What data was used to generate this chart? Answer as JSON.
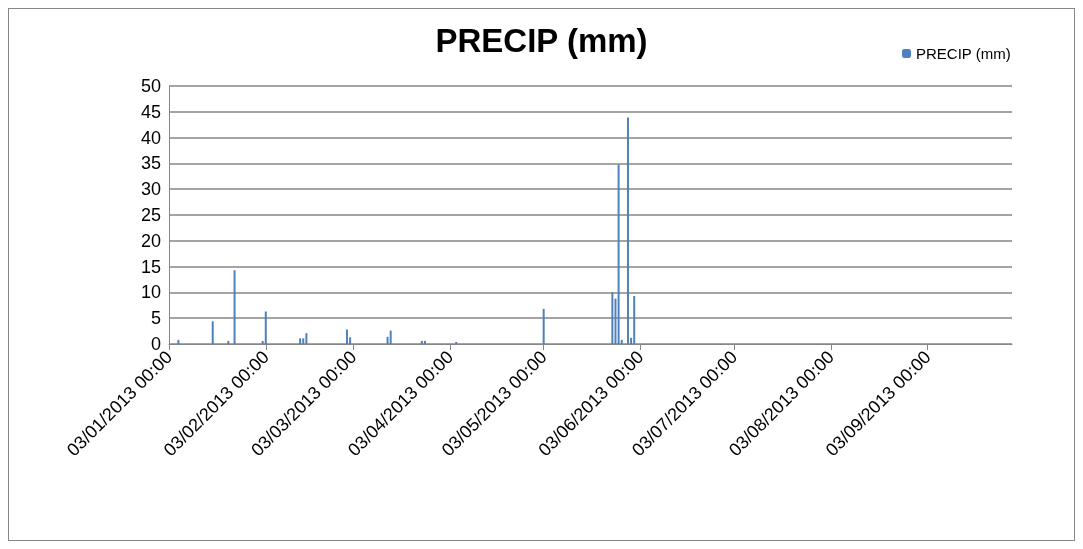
{
  "chart_data": {
    "type": "bar",
    "title": "PRECIP (mm)",
    "x": [
      "2013-01-06",
      "2013-01-17",
      "2013-01-22",
      "2013-01-24",
      "2013-02-02",
      "2013-02-03",
      "2013-02-14",
      "2013-02-15",
      "2013-02-16",
      "2013-03-01",
      "2013-03-02",
      "2013-03-14",
      "2013-03-15",
      "2013-03-25",
      "2013-03-26",
      "2013-04-05",
      "2013-05-03",
      "2013-05-25",
      "2013-05-26",
      "2013-05-27",
      "2013-05-28",
      "2013-05-30",
      "2013-05-31",
      "2013-06-01"
    ],
    "series": [
      {
        "name": "PRECIP (mm)",
        "color": "#4f81bd",
        "values": [
          0.8,
          4.4,
          0.6,
          14.3,
          0.6,
          6.3,
          1.1,
          1.1,
          2.1,
          2.8,
          1.3,
          1.4,
          2.6,
          0.6,
          0.6,
          0.4,
          6.8,
          10.0,
          8.8,
          34.8,
          0.8,
          43.9,
          1.2,
          9.3
        ]
      }
    ],
    "xlim": [
      "2013-01-03",
      "2013-09-30"
    ],
    "xticks": [
      {
        "value": "2013-01-03",
        "label": "03/01/2013 00:00"
      },
      {
        "value": "2013-02-03",
        "label": "03/02/2013 00:00"
      },
      {
        "value": "2013-03-03",
        "label": "03/03/2013 00:00"
      },
      {
        "value": "2013-04-03",
        "label": "03/04/2013 00:00"
      },
      {
        "value": "2013-05-03",
        "label": "03/05/2013 00:00"
      },
      {
        "value": "2013-06-03",
        "label": "03/06/2013 00:00"
      },
      {
        "value": "2013-07-03",
        "label": "03/07/2013 00:00"
      },
      {
        "value": "2013-08-03",
        "label": "03/08/2013 00:00"
      },
      {
        "value": "2013-09-03",
        "label": "03/09/2013 00:00"
      }
    ],
    "ylim": [
      0,
      50
    ],
    "yticks": [
      0,
      5,
      10,
      15,
      20,
      25,
      30,
      35,
      40,
      45,
      50
    ],
    "grid": "y",
    "legend": "top right"
  }
}
